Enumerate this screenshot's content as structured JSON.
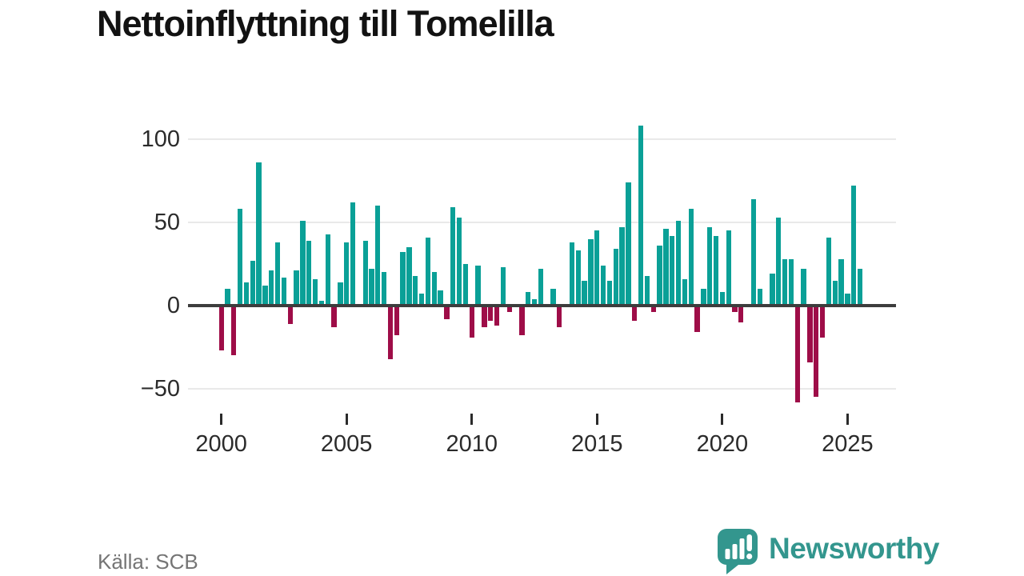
{
  "title": "Nettoinflyttning till Tomelilla",
  "source": "Källa: SCB",
  "brand": {
    "name": "Newsworthy",
    "color": "#33968e"
  },
  "colors": {
    "positive": "#0aa097",
    "negative": "#9e0d48",
    "axis": "#3d3d3d",
    "grid": "#e9e9e9",
    "tick": "#2b2b2b"
  },
  "chart_data": {
    "type": "bar",
    "title": "Nettoinflyttning till Tomelilla",
    "xlabel": "",
    "ylabel": "",
    "frequency": "quarterly",
    "start_year": 2000,
    "start_quarter": 1,
    "x_tick_labels": [
      "2000",
      "2005",
      "2010",
      "2015",
      "2020",
      "2025"
    ],
    "y_ticks": [
      100,
      50,
      0,
      -50
    ],
    "y_tick_labels": [
      "100",
      "50",
      "0",
      "−50"
    ],
    "ylim": [
      -61,
      116
    ],
    "grid": "horizontal",
    "legend": "none",
    "values": [
      -27,
      10,
      -30,
      58,
      14,
      27,
      86,
      12,
      21,
      38,
      17,
      -11,
      21,
      51,
      39,
      16,
      3,
      43,
      -13,
      14,
      38,
      62,
      0,
      39,
      22,
      60,
      20,
      -32,
      -18,
      32,
      35,
      18,
      7,
      41,
      20,
      9,
      -8,
      59,
      53,
      25,
      -19,
      24,
      -13,
      -9,
      -12,
      23,
      -4,
      0,
      -18,
      8,
      4,
      22,
      1,
      10,
      -13,
      0,
      38,
      33,
      15,
      40,
      45,
      24,
      15,
      34,
      47,
      74,
      -9,
      108,
      18,
      -4,
      36,
      46,
      42,
      51,
      16,
      58,
      -16,
      10,
      47,
      42,
      8,
      45,
      -4,
      -10,
      0,
      64,
      10,
      0,
      19,
      53,
      28,
      28,
      -58,
      22,
      -34,
      -55,
      -19,
      41,
      15,
      28,
      7,
      72,
      22
    ]
  }
}
